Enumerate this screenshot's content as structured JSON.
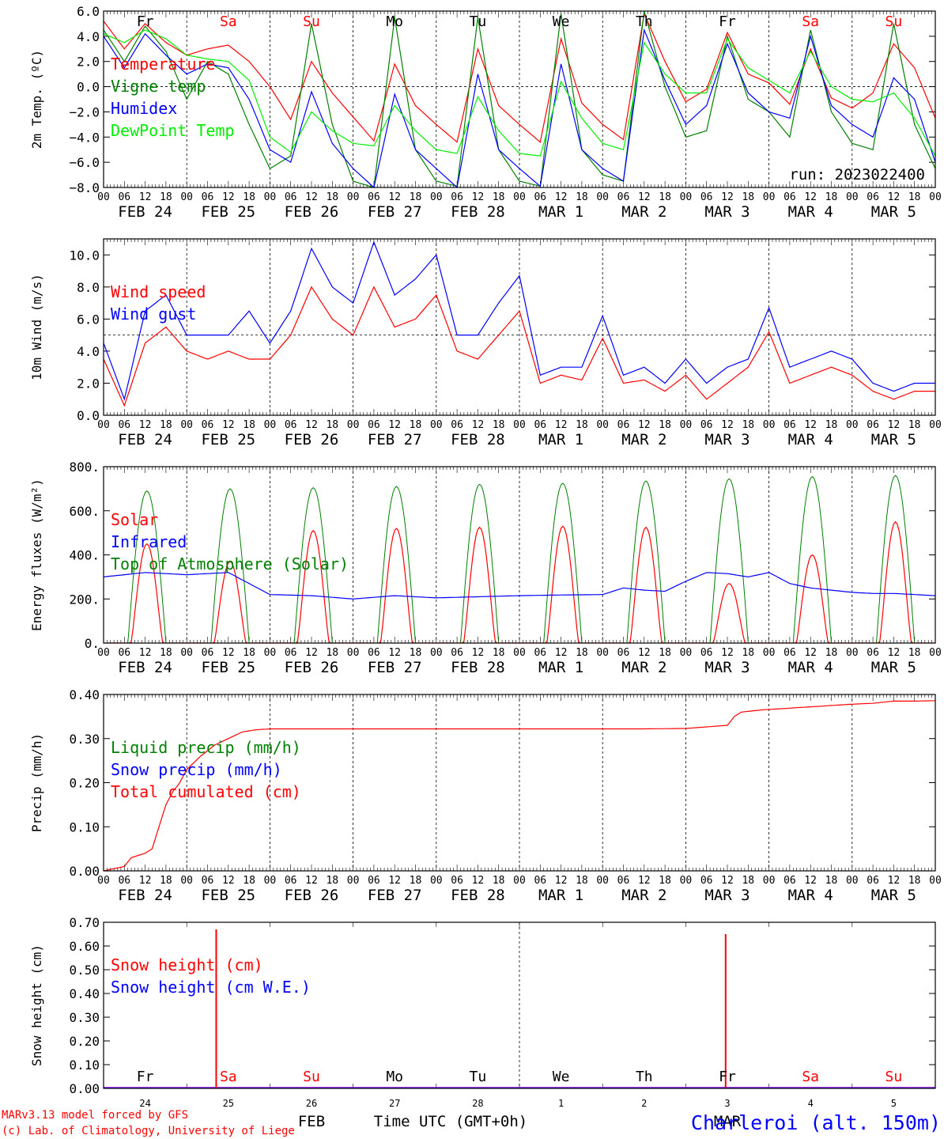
{
  "chart_data": [
    {
      "type": "line",
      "ylabel": "2m Temp. (ºC)",
      "ylim": [
        -8,
        6
      ],
      "yticks": [
        -8,
        -6,
        -4,
        -2,
        0,
        2,
        4,
        6
      ],
      "ytick_labels": [
        "−8.0",
        "−6.0",
        "−4.0",
        "−2.0",
        "0.0",
        "2.0",
        "4.0",
        "6.0"
      ],
      "ref_line": 0,
      "day_labels": [
        "Fr",
        "Sa",
        "Su",
        "Mo",
        "Tu",
        "We",
        "Th",
        "Fr",
        "Sa",
        "Su"
      ],
      "weekend_days": [
        1,
        2,
        8,
        9
      ],
      "annotation": "run: 2023022400",
      "legend": [
        "Temperature",
        "Vigne temp",
        "Humidex",
        "DewPoint Temp"
      ],
      "series": [
        {
          "name": "Temperature",
          "color": "#ff0000",
          "x": [
            0,
            6,
            12,
            18,
            24,
            30,
            36,
            42,
            48,
            54,
            60,
            66,
            72,
            78,
            84,
            90,
            96,
            102,
            108,
            114,
            120,
            126,
            132,
            138,
            144,
            150,
            156,
            162,
            168,
            174,
            180,
            186,
            192,
            198,
            204,
            210,
            216,
            222,
            228,
            234,
            240
          ],
          "values": [
            5.2,
            3.0,
            5.0,
            3.5,
            2.5,
            3.0,
            3.3,
            2.0,
            0.0,
            -2.6,
            2.0,
            -0.5,
            -2.4,
            -4.3,
            1.8,
            -1.5,
            -3.0,
            -4.4,
            3.0,
            -1.5,
            -3.0,
            -4.4,
            3.8,
            -1.3,
            -3.0,
            -4.2,
            5.8,
            2.0,
            -1.2,
            -0.2,
            4.3,
            1.0,
            0.3,
            -1.4,
            3.0,
            -0.9,
            -1.7,
            -0.5,
            3.4,
            1.5,
            -2.5
          ]
        },
        {
          "name": "Vigne temp",
          "color": "#008000",
          "x": [
            0,
            6,
            12,
            18,
            24,
            30,
            36,
            42,
            48,
            54,
            60,
            66,
            72,
            78,
            84,
            90,
            96,
            102,
            108,
            114,
            120,
            126,
            132,
            138,
            144,
            150,
            156,
            162,
            168,
            174,
            180,
            186,
            192,
            198,
            204,
            210,
            216,
            222,
            228,
            234,
            240
          ],
          "values": [
            4.5,
            2.0,
            4.8,
            2.8,
            -1.0,
            2.0,
            1.0,
            -3.0,
            -6.5,
            -5.5,
            5.0,
            -3.0,
            -7.5,
            -8.0,
            5.5,
            -5.0,
            -7.5,
            -7.9,
            5.5,
            -5.0,
            -7.5,
            -7.9,
            5.8,
            -5.0,
            -7.0,
            -7.5,
            6.0,
            0.0,
            -4.0,
            -3.5,
            4.0,
            -1.0,
            -2.0,
            -4.0,
            4.5,
            -2.0,
            -4.5,
            -5.0,
            5.0,
            -3.0,
            -6.5
          ]
        },
        {
          "name": "Humidex",
          "color": "#0000ff",
          "x": [
            0,
            6,
            12,
            18,
            24,
            30,
            36,
            42,
            48,
            54,
            60,
            66,
            72,
            78,
            84,
            90,
            96,
            102,
            108,
            114,
            120,
            126,
            132,
            138,
            144,
            150,
            156,
            162,
            168,
            174,
            180,
            186,
            192,
            198,
            204,
            210,
            216,
            222,
            228,
            234,
            240
          ],
          "values": [
            4.0,
            1.5,
            4.2,
            2.5,
            1.0,
            1.8,
            1.5,
            -1.0,
            -5.0,
            -6.0,
            -0.4,
            -4.5,
            -6.5,
            -8.0,
            -0.6,
            -5.0,
            -6.5,
            -8.0,
            1.0,
            -5.0,
            -6.5,
            -7.9,
            1.8,
            -5.0,
            -6.5,
            -7.5,
            4.5,
            0.5,
            -3.0,
            -1.5,
            3.4,
            -0.5,
            -2.0,
            -2.5,
            4.0,
            -1.5,
            -3.0,
            -4.0,
            0.7,
            -1.0,
            -6.0
          ]
        },
        {
          "name": "DewPoint Temp",
          "color": "#00ee00",
          "x": [
            0,
            6,
            12,
            18,
            24,
            30,
            36,
            42,
            48,
            54,
            60,
            66,
            72,
            78,
            84,
            90,
            96,
            102,
            108,
            114,
            120,
            126,
            132,
            138,
            144,
            150,
            156,
            162,
            168,
            174,
            180,
            186,
            192,
            198,
            204,
            210,
            216,
            222,
            228,
            234,
            240
          ],
          "values": [
            4.2,
            3.5,
            4.5,
            3.8,
            2.5,
            2.2,
            2.0,
            0.5,
            -4.0,
            -5.2,
            -2.0,
            -3.5,
            -4.5,
            -4.7,
            -1.5,
            -3.5,
            -5.0,
            -5.3,
            -0.8,
            -3.5,
            -5.3,
            -5.5,
            0.4,
            -2.5,
            -4.5,
            -5.0,
            3.5,
            1.0,
            -0.5,
            -0.5,
            3.8,
            1.5,
            0.5,
            -0.5,
            2.8,
            0.0,
            -1.0,
            -1.2,
            -0.5,
            -2.5,
            -5.5
          ]
        }
      ]
    },
    {
      "type": "line",
      "ylabel": "10m Wind (m/s)",
      "ylim": [
        0,
        11
      ],
      "yticks": [
        0,
        2,
        4,
        6,
        8,
        10
      ],
      "ytick_labels": [
        "0.0",
        "2.0",
        "4.0",
        "6.0",
        "8.0",
        "10.0"
      ],
      "ref_line": 5,
      "legend": [
        "Wind speed",
        "Wind gust"
      ],
      "series": [
        {
          "name": "Wind speed",
          "color": "#ff0000",
          "x": [
            0,
            6,
            12,
            18,
            24,
            30,
            36,
            42,
            48,
            54,
            60,
            66,
            72,
            78,
            84,
            90,
            96,
            102,
            108,
            114,
            120,
            126,
            132,
            138,
            144,
            150,
            156,
            162,
            168,
            174,
            180,
            186,
            192,
            198,
            204,
            210,
            216,
            222,
            228,
            234,
            240
          ],
          "values": [
            3.5,
            0.6,
            4.5,
            5.5,
            4.0,
            3.5,
            4.0,
            3.5,
            3.5,
            5.0,
            8.0,
            6.0,
            5.0,
            8.0,
            5.5,
            6.0,
            7.5,
            4.0,
            3.5,
            5.0,
            6.5,
            2.0,
            2.5,
            2.2,
            4.8,
            2.0,
            2.2,
            1.5,
            2.5,
            1.0,
            2.0,
            3.0,
            5.2,
            2.0,
            2.5,
            3.0,
            2.5,
            1.5,
            1.0,
            1.5,
            1.5
          ]
        },
        {
          "name": "Wind gust",
          "color": "#0000ff",
          "x": [
            0,
            6,
            12,
            18,
            24,
            30,
            36,
            42,
            48,
            54,
            60,
            66,
            72,
            78,
            84,
            90,
            96,
            102,
            108,
            114,
            120,
            126,
            132,
            138,
            144,
            150,
            156,
            162,
            168,
            174,
            180,
            186,
            192,
            198,
            204,
            210,
            216,
            222,
            228,
            234,
            240
          ],
          "values": [
            4.5,
            1.0,
            6.5,
            7.5,
            5.0,
            5.0,
            5.0,
            6.5,
            4.5,
            6.5,
            10.4,
            8.0,
            7.0,
            10.8,
            7.5,
            8.5,
            10.0,
            5.0,
            5.0,
            7.0,
            8.7,
            2.5,
            3.0,
            3.0,
            6.2,
            2.5,
            3.0,
            2.0,
            3.5,
            2.0,
            3.0,
            3.5,
            6.7,
            3.0,
            3.5,
            4.0,
            3.5,
            2.0,
            1.5,
            2.0,
            2.0
          ]
        }
      ]
    },
    {
      "type": "line",
      "ylabel": "Energy fluxes (W/m²)",
      "ylim": [
        0,
        800
      ],
      "yticks": [
        0,
        200,
        400,
        600,
        800
      ],
      "ytick_labels": [
        "0.",
        "200.",
        "400.",
        "600.",
        "800."
      ],
      "legend": [
        "Solar",
        "Infrared",
        "Top of Atmosphere (Solar)"
      ],
      "toa_peaks": [
        690,
        700,
        705,
        710,
        720,
        725,
        735,
        745,
        755,
        760
      ],
      "solar_peaks": [
        450,
        370,
        510,
        520,
        525,
        530,
        525,
        270,
        400,
        550
      ],
      "series": [
        {
          "name": "Infrared",
          "color": "#0000ff",
          "x": [
            0,
            12,
            24,
            36,
            48,
            60,
            72,
            84,
            96,
            108,
            120,
            132,
            144,
            150,
            156,
            162,
            168,
            174,
            180,
            186,
            192,
            198,
            204,
            210,
            216,
            222,
            228,
            234,
            240
          ],
          "values": [
            300,
            320,
            310,
            320,
            220,
            215,
            200,
            215,
            205,
            210,
            215,
            218,
            220,
            250,
            240,
            235,
            280,
            320,
            315,
            300,
            320,
            270,
            250,
            240,
            230,
            225,
            225,
            220,
            215
          ]
        }
      ]
    },
    {
      "type": "line",
      "ylabel": "Precip (mm/h)",
      "ylim": [
        0,
        0.4
      ],
      "yticks": [
        0,
        0.1,
        0.2,
        0.3,
        0.4
      ],
      "ytick_labels": [
        "0.00",
        "0.10",
        "0.20",
        "0.30",
        "0.40"
      ],
      "legend": [
        "Liquid precip (mm/h)",
        "Snow precip (mm/h)",
        "Total cumulated (cm)"
      ],
      "series": [
        {
          "name": "Total cumulated (cm)",
          "color": "#ff0000",
          "x": [
            0,
            6,
            8,
            12,
            14,
            16,
            18,
            20,
            22,
            24,
            28,
            32,
            36,
            40,
            44,
            48,
            60,
            72,
            96,
            120,
            144,
            156,
            168,
            180,
            182,
            184,
            190,
            200,
            210,
            216,
            222,
            228,
            234,
            240
          ],
          "values": [
            0,
            0.01,
            0.03,
            0.04,
            0.05,
            0.1,
            0.15,
            0.18,
            0.2,
            0.23,
            0.26,
            0.285,
            0.3,
            0.315,
            0.32,
            0.322,
            0.322,
            0.322,
            0.322,
            0.322,
            0.322,
            0.322,
            0.323,
            0.33,
            0.35,
            0.36,
            0.365,
            0.37,
            0.375,
            0.378,
            0.38,
            0.385,
            0.385,
            0.386
          ]
        }
      ]
    },
    {
      "type": "line",
      "ylabel": "Snow height (cm)",
      "ylim": [
        0,
        0.7
      ],
      "yticks": [
        0,
        0.1,
        0.2,
        0.3,
        0.4,
        0.5,
        0.6,
        0.7
      ],
      "ytick_labels": [
        "0.00",
        "0.10",
        "0.20",
        "0.30",
        "0.40",
        "0.50",
        "0.60",
        "0.70"
      ],
      "legend": [
        "Snow height (cm)",
        "Snow height (cm W.E.)"
      ],
      "spikes": [
        {
          "x": 32.5,
          "value": 0.67
        },
        {
          "x": 179.5,
          "value": 0.65
        }
      ],
      "day_labels": [
        "Fr",
        "Sa",
        "Su",
        "Mo",
        "Tu",
        "We",
        "Th",
        "Fr",
        "Sa",
        "Su"
      ],
      "weekend_days": [
        1,
        2,
        8,
        9
      ],
      "day_numbers": [
        "24",
        "25",
        "26",
        "27",
        "28",
        "1",
        "2",
        "3",
        "4",
        "5"
      ],
      "months": [
        "FEB",
        "MAR"
      ],
      "xlabel": "Time UTC (GMT+0h)"
    }
  ],
  "x_axis": {
    "hour_labels": [
      "00",
      "06",
      "12",
      "18"
    ],
    "final_label": "00",
    "date_labels": [
      "FEB 24",
      "FEB 25",
      "FEB 26",
      "FEB 27",
      "FEB 28",
      "MAR  1",
      "MAR  2",
      "MAR  3",
      "MAR  4",
      "MAR  5"
    ]
  },
  "footer": {
    "model_line": "MARv3.13 model forced by GFS",
    "lab_line": "(c) Lab. of Climatology, University of Liege",
    "station": "Charleroi (alt. 150m)"
  },
  "colors": {
    "red": "#ff0000",
    "green": "#008000",
    "blue": "#0000ff",
    "lightgreen": "#00ee00"
  }
}
